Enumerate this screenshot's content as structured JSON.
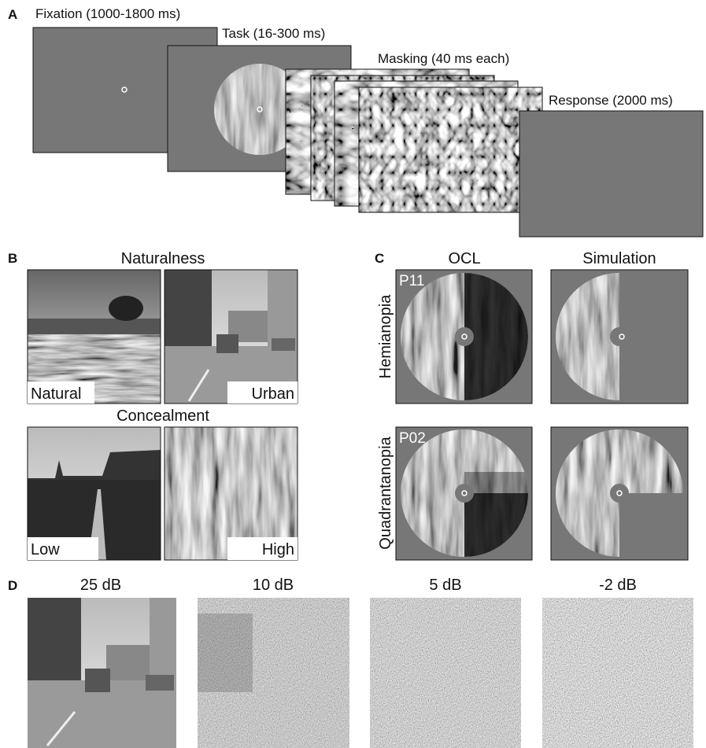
{
  "panel_a": {
    "label": "A",
    "stages": [
      "Fixation (1000-1800 ms)",
      "Task (16-300 ms)",
      "Masking (40 ms each)",
      "Response (2000 ms)"
    ]
  },
  "panel_b": {
    "label": "B",
    "naturalness": {
      "title": "Naturalness",
      "images": [
        "Natural",
        "Urban"
      ]
    },
    "concealment": {
      "title": "Concealment",
      "images": [
        "Low",
        "High"
      ]
    }
  },
  "panel_c": {
    "label": "C",
    "columns": [
      "OCL",
      "Simulation"
    ],
    "rows": [
      "Hemianopia",
      "Quadrantanopia"
    ],
    "participants": [
      "P11",
      "P02"
    ]
  },
  "panel_d": {
    "label": "D",
    "snr_levels": [
      "25 dB",
      "10 dB",
      "5 dB",
      "-2 dB"
    ]
  }
}
